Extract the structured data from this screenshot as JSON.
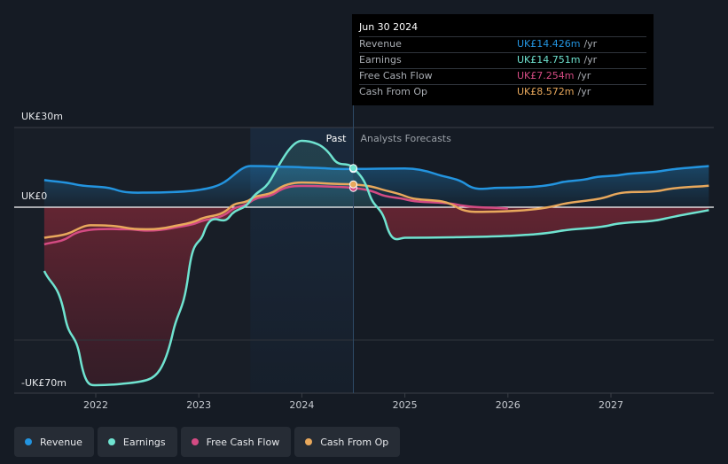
{
  "colors": {
    "background": "#151b24",
    "revenue": "#2394df",
    "earnings": "#6fe3d0",
    "free_cash_flow": "#d44b83",
    "cash_from_op": "#e8a85c",
    "past_region": "#1b2a3c",
    "grid": "#3a3f47"
  },
  "tooltip": {
    "date": "Jun 30 2024",
    "rows": [
      {
        "label": "Revenue",
        "value": "UK£14.426m",
        "unit": "/yr",
        "color": "#2394df"
      },
      {
        "label": "Earnings",
        "value": "UK£14.751m",
        "unit": "/yr",
        "color": "#6fe3d0"
      },
      {
        "label": "Free Cash Flow",
        "value": "UK£7.254m",
        "unit": "/yr",
        "color": "#d44b83"
      },
      {
        "label": "Cash From Op",
        "value": "UK£8.572m",
        "unit": "/yr",
        "color": "#e8a85c"
      }
    ]
  },
  "legend": [
    {
      "label": "Revenue",
      "color": "#2394df",
      "icon": "circle-dot-icon"
    },
    {
      "label": "Earnings",
      "color": "#6fe3d0",
      "icon": "circle-dot-icon"
    },
    {
      "label": "Free Cash Flow",
      "color": "#d44b83",
      "icon": "circle-dot-icon"
    },
    {
      "label": "Cash From Op",
      "color": "#e8a85c",
      "icon": "circle-dot-icon"
    }
  ],
  "chart_data": {
    "type": "line",
    "title": "",
    "xlabel": "",
    "ylabel": "",
    "ylim": [
      -70,
      30
    ],
    "xlim": [
      2021.5,
      2027.95
    ],
    "y_tick_labels": [
      {
        "value": 30,
        "label": "UK£30m"
      },
      {
        "value": 0,
        "label": "UK£0"
      },
      {
        "value": -70,
        "label": "-UK£70m"
      }
    ],
    "x_ticks": [
      2022,
      2023,
      2024,
      2025,
      2026,
      2027
    ],
    "x_tick_labels": [
      "2022",
      "2023",
      "2024",
      "2025",
      "2026",
      "2027"
    ],
    "past_label": "Past",
    "forecast_label": "Analysts Forecasts",
    "past_region": [
      2023.5,
      2024.5
    ],
    "tooltip_date": 2024.5,
    "series": [
      {
        "name": "Revenue",
        "key": "revenue",
        "points": [
          [
            2021.5,
            10.2
          ],
          [
            2021.8,
            8.6
          ],
          [
            2022.2,
            6.5
          ],
          [
            2022.5,
            5.5
          ],
          [
            2022.75,
            5.7
          ],
          [
            2023.0,
            6.5
          ],
          [
            2023.25,
            9.5
          ],
          [
            2023.5,
            15.5
          ],
          [
            2023.75,
            15.3
          ],
          [
            2024.0,
            15.0
          ],
          [
            2024.25,
            14.6
          ],
          [
            2024.5,
            14.4
          ],
          [
            2024.75,
            14.5
          ],
          [
            2025.0,
            14.6
          ],
          [
            2025.3,
            12.5
          ],
          [
            2025.6,
            8.5
          ],
          [
            2025.9,
            7.3
          ],
          [
            2026.2,
            7.6
          ],
          [
            2026.5,
            9.2
          ],
          [
            2026.8,
            10.9
          ],
          [
            2027.1,
            12.2
          ],
          [
            2027.5,
            13.7
          ],
          [
            2027.95,
            15.5
          ]
        ]
      },
      {
        "name": "Earnings",
        "key": "earnings",
        "points": [
          [
            2021.5,
            -24
          ],
          [
            2021.7,
            -41
          ],
          [
            2021.85,
            -57
          ],
          [
            2022.0,
            -67
          ],
          [
            2022.25,
            -66.5
          ],
          [
            2022.5,
            -65
          ],
          [
            2022.75,
            -47
          ],
          [
            2022.9,
            -25
          ],
          [
            2023.05,
            -9.5
          ],
          [
            2023.3,
            -3.5
          ],
          [
            2023.5,
            2.5
          ],
          [
            2023.7,
            10.5
          ],
          [
            2024.0,
            25.0
          ],
          [
            2024.15,
            23.8
          ],
          [
            2024.3,
            18.5
          ],
          [
            2024.5,
            14.75
          ],
          [
            2024.65,
            5.5
          ],
          [
            2024.82,
            -6.5
          ],
          [
            2025.0,
            -11.5
          ],
          [
            2025.5,
            -11.3
          ],
          [
            2026.0,
            -10.8
          ],
          [
            2026.5,
            -9.0
          ],
          [
            2027.0,
            -6.7
          ],
          [
            2027.5,
            -4.5
          ],
          [
            2027.95,
            -1.1
          ]
        ]
      },
      {
        "name": "Free Cash Flow",
        "key": "free_cash_flow",
        "points": [
          [
            2021.5,
            -14
          ],
          [
            2021.75,
            -11
          ],
          [
            2021.95,
            -8.5
          ],
          [
            2022.3,
            -8.3
          ],
          [
            2022.5,
            -8.8
          ],
          [
            2022.75,
            -7.8
          ],
          [
            2023.0,
            -5.6
          ],
          [
            2023.3,
            -1.5
          ],
          [
            2023.5,
            2.0
          ],
          [
            2023.75,
            5.5
          ],
          [
            2024.0,
            8.0
          ],
          [
            2024.25,
            7.8
          ],
          [
            2024.5,
            7.25
          ],
          [
            2024.75,
            5.0
          ],
          [
            2025.0,
            3.0
          ],
          [
            2025.5,
            1.0
          ],
          [
            2026.0,
            -0.5
          ]
        ]
      },
      {
        "name": "Cash From Op",
        "key": "cash_from_op",
        "points": [
          [
            2021.5,
            -11.5
          ],
          [
            2021.75,
            -9.6
          ],
          [
            2021.95,
            -6.8
          ],
          [
            2022.3,
            -7.8
          ],
          [
            2022.5,
            -8.3
          ],
          [
            2022.75,
            -7.2
          ],
          [
            2023.0,
            -4.7
          ],
          [
            2023.3,
            -0.2
          ],
          [
            2023.5,
            2.9
          ],
          [
            2023.75,
            6.4
          ],
          [
            2024.0,
            9.3
          ],
          [
            2024.25,
            8.9
          ],
          [
            2024.5,
            8.6
          ],
          [
            2024.75,
            7.0
          ],
          [
            2025.0,
            4.2
          ],
          [
            2025.5,
            0.1
          ],
          [
            2025.8,
            -1.7
          ],
          [
            2026.1,
            -1.3
          ],
          [
            2026.5,
            0.9
          ],
          [
            2027.0,
            4.4
          ],
          [
            2027.5,
            6.4
          ],
          [
            2027.95,
            8.1
          ]
        ]
      }
    ]
  }
}
